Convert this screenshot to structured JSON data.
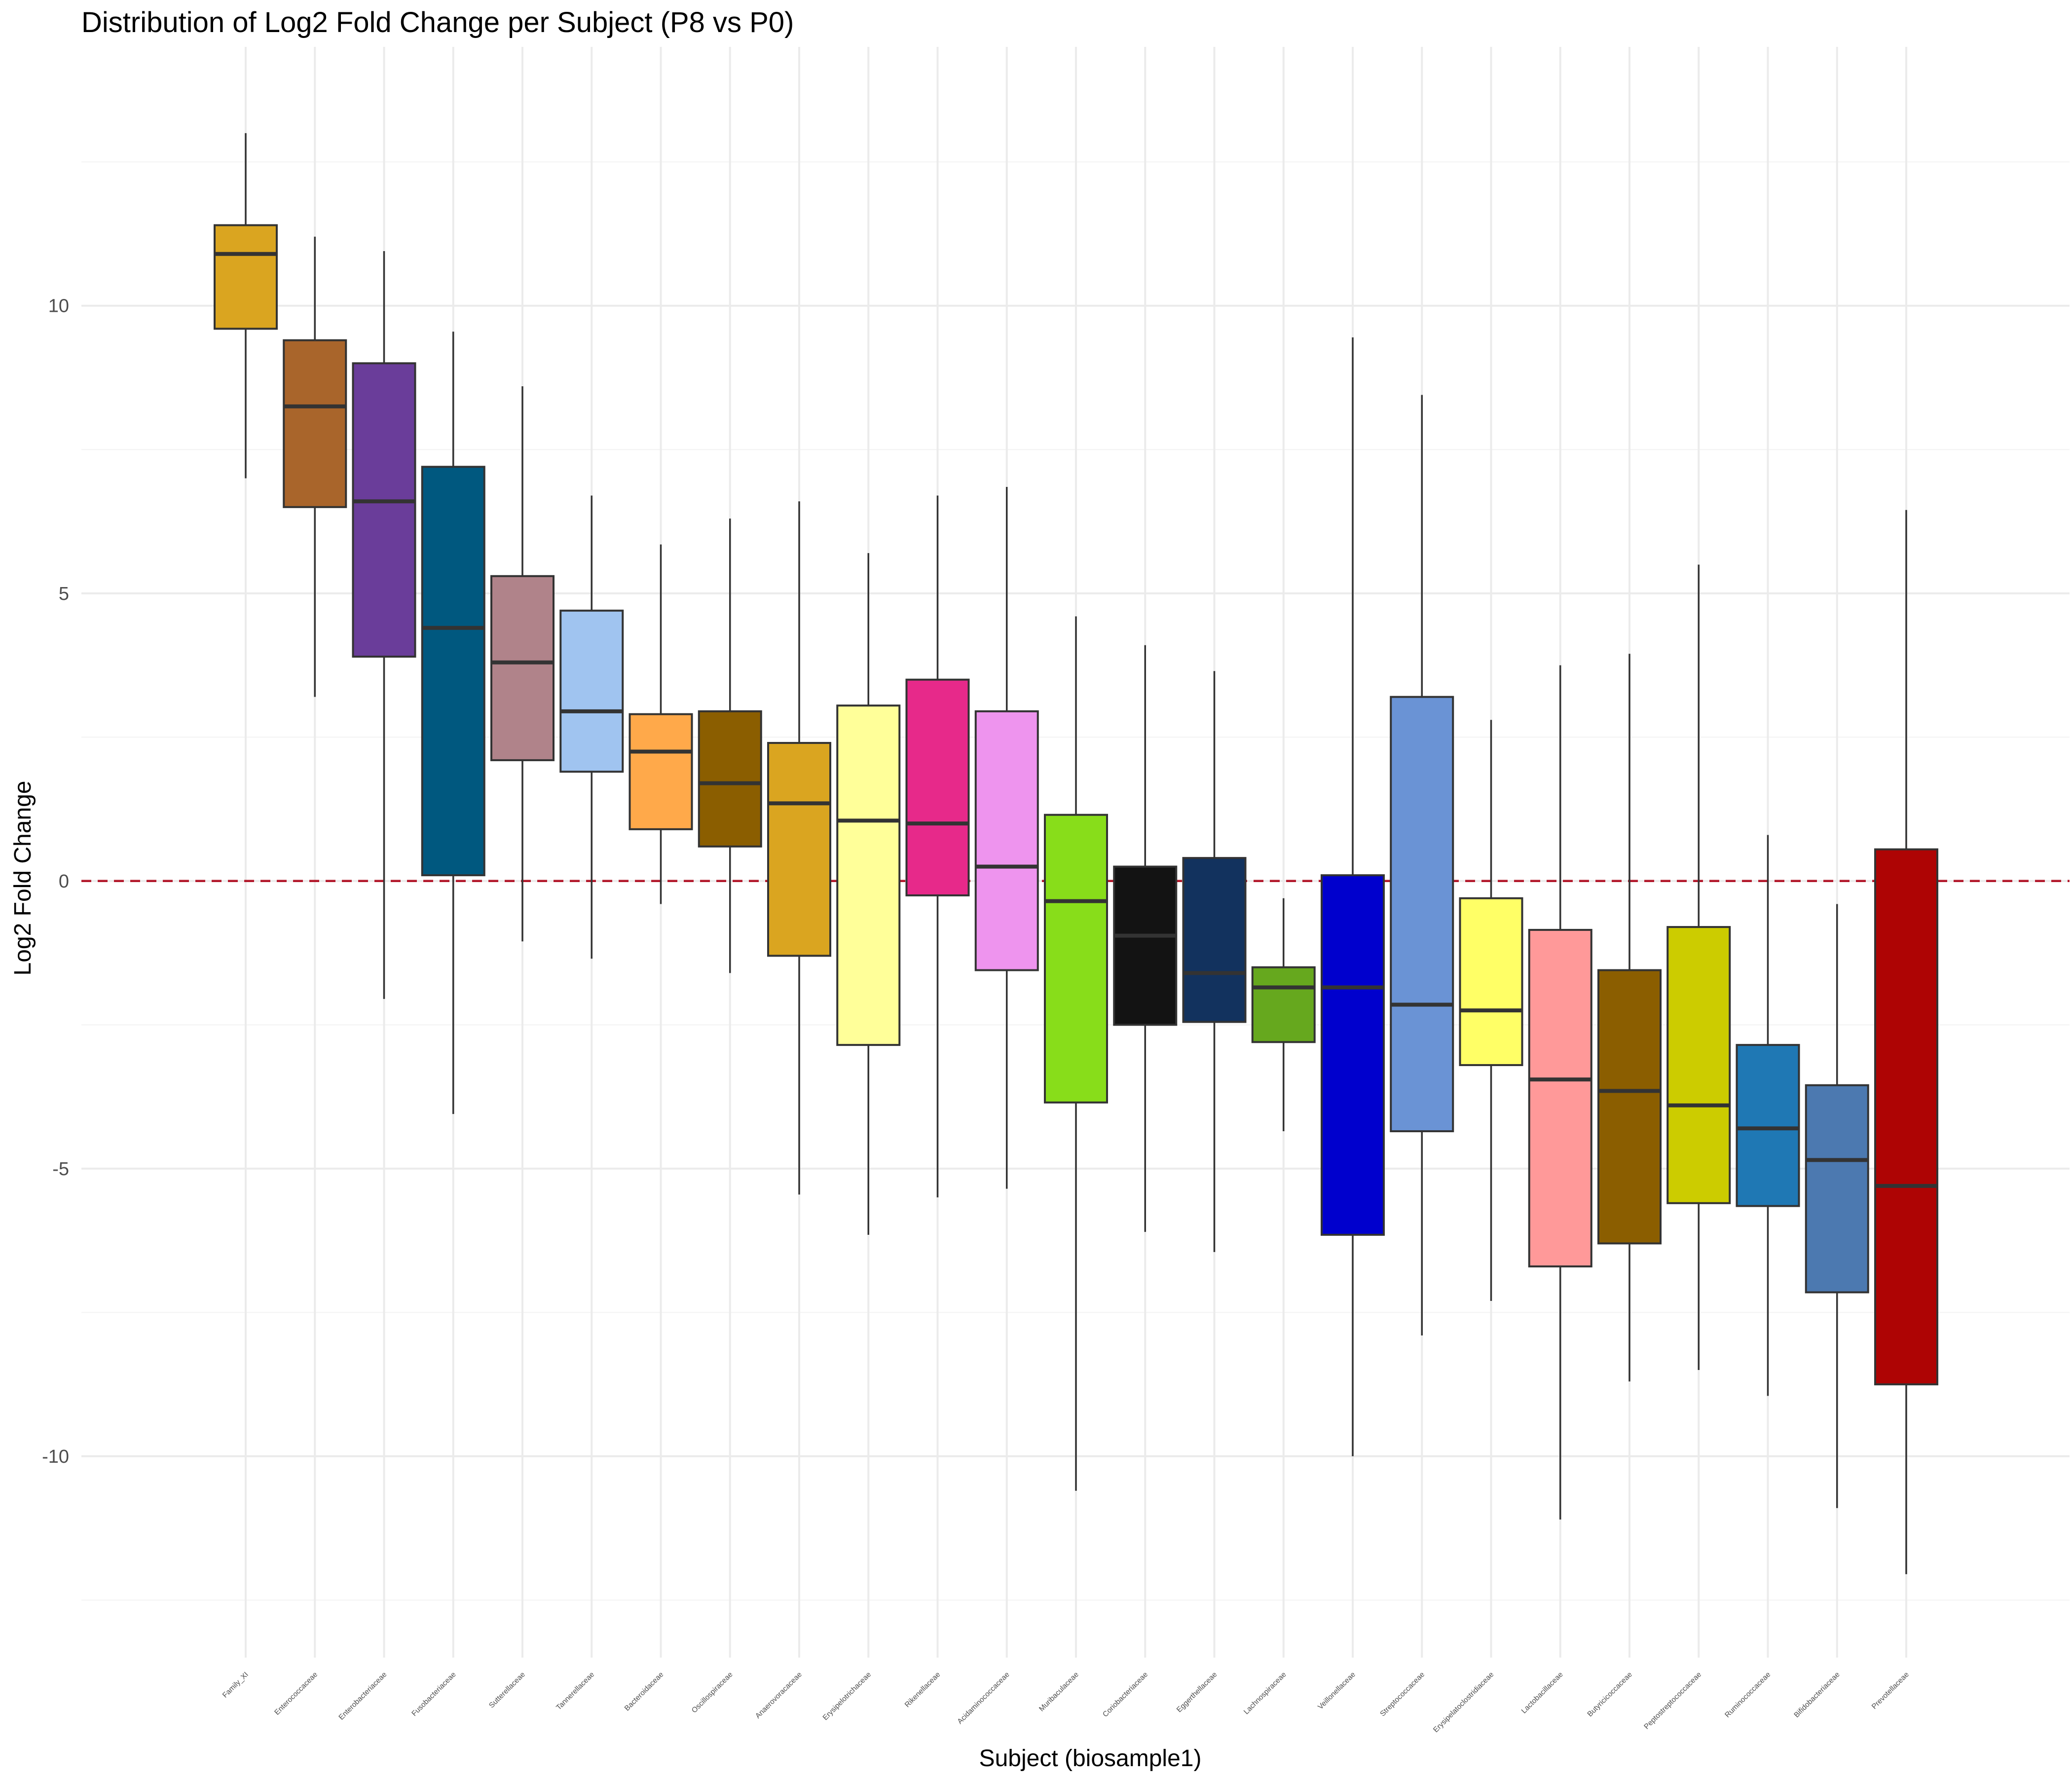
{
  "chart_data": {
    "type": "box",
    "title": "Distribution of Log2 Fold Change per Subject (P8 vs P0)",
    "xlabel": "Subject (biosample1)",
    "ylabel": "Log2 Fold Change",
    "ylim": [
      -13.5,
      14.5
    ],
    "yticks": [
      10,
      5,
      0,
      -5,
      -10
    ],
    "ytick_labels": [
      "10",
      "5",
      "0",
      "-5",
      "-10"
    ],
    "grid": true,
    "reference_line": {
      "y": 0,
      "color": "#b2182b",
      "style": "dashed"
    },
    "categories": [
      "Family_XI",
      "Enterococcaceae",
      "Enterobacteriaceae",
      "Fusobacteriaceae",
      "Sutterellaceae",
      "Tannerellaceae",
      "Bacteroidaceae",
      "Oscillospiraceae",
      "Anaerovoracaceae",
      "Erysipelotrichaceae",
      "Rikenellaceae",
      "Acidaminococcaceae",
      "Muribaculaceae",
      "Coriobacteriaceae",
      "Eggerthellaceae",
      "Lachnospiraceae",
      "Veillonellaceae",
      "Streptococcaceae",
      "Erysipelatoclostridiaceae",
      "Lactobacillaceae",
      "Butyricicoccaceae",
      "Peptostreptococcaceae",
      "Ruminococcaceae",
      "Bifidobacteriaceae",
      "Prevotellaceae"
    ],
    "series": [
      {
        "category": "Family_XI",
        "min": 7.0,
        "q1": 9.6,
        "median": 10.9,
        "q3": 11.4,
        "max": 13.0,
        "color": "#DAA520"
      },
      {
        "category": "Enterococcaceae",
        "min": 3.2,
        "q1": 6.5,
        "median": 8.25,
        "q3": 9.4,
        "max": 11.2,
        "color": "#A9652B"
      },
      {
        "category": "Enterobacteriaceae",
        "min": -2.05,
        "q1": 3.9,
        "median": 6.6,
        "q3": 9.0,
        "max": 10.95,
        "color": "#6A3D9A"
      },
      {
        "category": "Fusobacteriaceae",
        "min": -4.05,
        "q1": 0.1,
        "median": 4.4,
        "q3": 7.2,
        "max": 9.55,
        "color": "#00587F"
      },
      {
        "category": "Sutterellaceae",
        "min": -1.05,
        "q1": 2.1,
        "median": 3.8,
        "q3": 5.3,
        "max": 8.6,
        "color": "#B0838A"
      },
      {
        "category": "Tannerellaceae",
        "min": -1.35,
        "q1": 1.9,
        "median": 2.95,
        "q3": 4.7,
        "max": 6.7,
        "color": "#A0C4F0"
      },
      {
        "category": "Bacteroidaceae",
        "min": -0.4,
        "q1": 0.9,
        "median": 2.25,
        "q3": 2.9,
        "max": 5.85,
        "color": "#FFA94A"
      },
      {
        "category": "Oscillospiraceae",
        "min": -1.6,
        "q1": 0.6,
        "median": 1.7,
        "q3": 2.95,
        "max": 6.3,
        "color": "#8B5E00"
      },
      {
        "category": "Anaerovoracaceae",
        "min": -5.45,
        "q1": -1.3,
        "median": 1.35,
        "q3": 2.4,
        "max": 6.6,
        "color": "#DAA520"
      },
      {
        "category": "Erysipelotrichaceae",
        "min": -6.15,
        "q1": -2.85,
        "median": 1.05,
        "q3": 3.05,
        "max": 5.7,
        "color": "#FFFF99"
      },
      {
        "category": "Rikenellaceae",
        "min": -5.5,
        "q1": -0.25,
        "median": 1.0,
        "q3": 3.5,
        "max": 6.7,
        "color": "#E7298A"
      },
      {
        "category": "Acidaminococcaceae",
        "min": -5.35,
        "q1": -1.55,
        "median": 0.25,
        "q3": 2.95,
        "max": 6.85,
        "color": "#EE94EE"
      },
      {
        "category": "Muribaculaceae",
        "min": -10.6,
        "q1": -3.85,
        "median": -0.35,
        "q3": 1.15,
        "max": 4.6,
        "color": "#88DD1A"
      },
      {
        "category": "Coriobacteriaceae",
        "min": -6.1,
        "q1": -2.5,
        "median": -0.95,
        "q3": 0.25,
        "max": 4.1,
        "color": "#131313"
      },
      {
        "category": "Eggerthellaceae",
        "min": -6.45,
        "q1": -2.45,
        "median": -1.6,
        "q3": 0.4,
        "max": 3.65,
        "color": "#12325E"
      },
      {
        "category": "Lachnospiraceae",
        "min": -4.35,
        "q1": -2.8,
        "median": -1.85,
        "q3": -1.5,
        "max": -0.3,
        "color": "#66A81E"
      },
      {
        "category": "Veillonellaceae",
        "min": -10.0,
        "q1": -6.15,
        "median": -1.85,
        "q3": 0.1,
        "max": 9.45,
        "color": "#0000CD"
      },
      {
        "category": "Streptococcaceae",
        "min": -7.9,
        "q1": -4.35,
        "median": -2.15,
        "q3": 3.2,
        "max": 8.45,
        "color": "#6A93D5"
      },
      {
        "category": "Erysipelatoclostridiaceae",
        "min": -7.3,
        "q1": -3.2,
        "median": -2.25,
        "q3": -0.3,
        "max": 2.8,
        "color": "#FFFF66"
      },
      {
        "category": "Lactobacillaceae",
        "min": -11.1,
        "q1": -6.7,
        "median": -3.45,
        "q3": -0.85,
        "max": 3.75,
        "color": "#FF9999"
      },
      {
        "category": "Butyricicoccaceae",
        "min": -8.7,
        "q1": -6.3,
        "median": -3.65,
        "q3": -1.55,
        "max": 3.95,
        "color": "#8B5E00"
      },
      {
        "category": "Peptostreptococcaceae",
        "min": -8.5,
        "q1": -5.6,
        "median": -3.9,
        "q3": -0.8,
        "max": 5.5,
        "color": "#CCCC00"
      },
      {
        "category": "Ruminococcaceae",
        "min": -8.95,
        "q1": -5.65,
        "median": -4.3,
        "q3": -2.85,
        "max": 0.8,
        "color": "#1F78B4"
      },
      {
        "category": "Bifidobacteriaceae",
        "min": -10.9,
        "q1": -7.15,
        "median": -4.85,
        "q3": -3.55,
        "max": -0.4,
        "color": "#4C79B0"
      },
      {
        "category": "Prevotellaceae",
        "min": -12.05,
        "q1": -8.75,
        "median": -5.3,
        "q3": 0.55,
        "max": 6.45,
        "color": "#AE0404"
      }
    ]
  }
}
